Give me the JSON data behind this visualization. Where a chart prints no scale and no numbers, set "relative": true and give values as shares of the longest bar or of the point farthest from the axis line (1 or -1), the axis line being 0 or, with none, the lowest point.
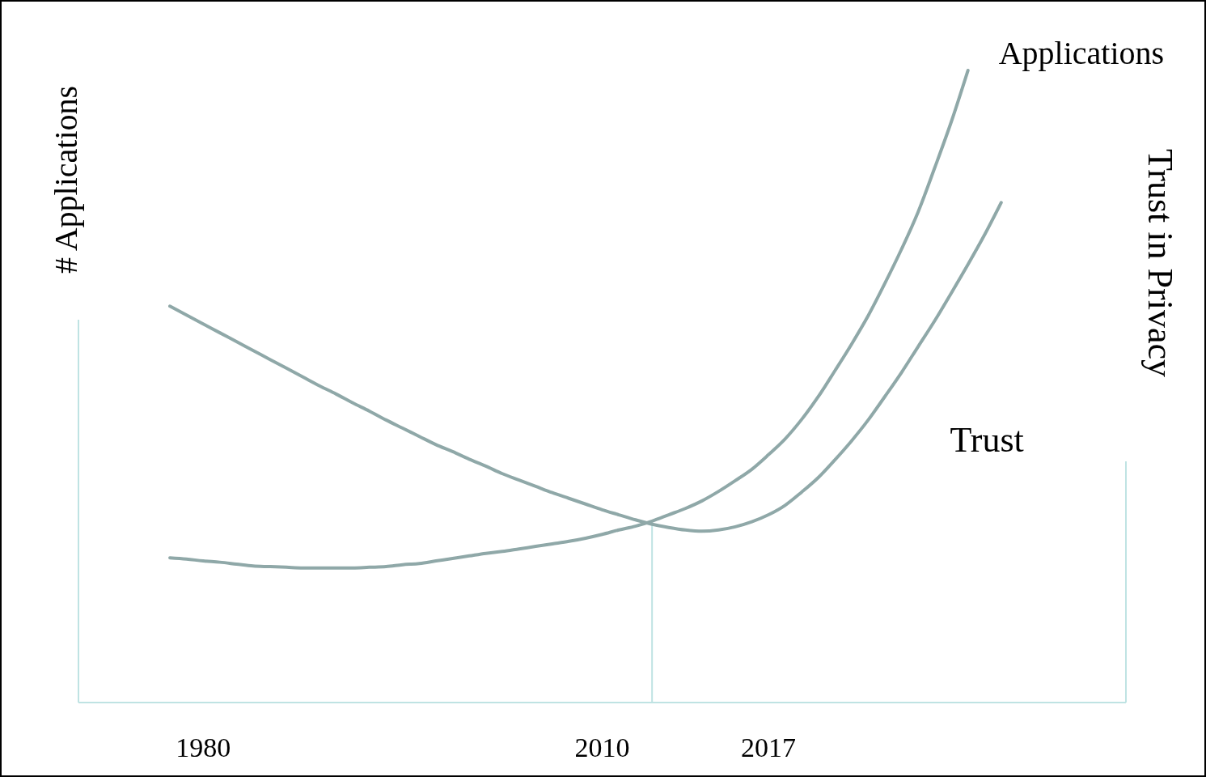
{
  "chart_data": {
    "type": "line",
    "relative": true,
    "ylabel": "# Applications",
    "y2label": "Trust in Privacy",
    "categories": [
      null,
      null,
      null,
      null,
      null,
      null,
      null,
      "1980",
      null,
      null,
      null,
      null,
      null,
      null,
      null,
      null,
      null,
      null,
      null,
      null,
      null,
      null,
      null,
      null,
      null,
      null,
      null,
      null,
      null,
      null,
      null,
      "2010",
      null,
      null,
      null,
      null,
      null,
      null,
      null,
      null,
      null,
      "2017",
      null,
      null,
      null,
      null,
      null,
      null,
      null,
      null,
      null,
      null,
      null,
      null,
      null,
      null,
      null,
      null,
      null,
      null,
      null,
      null,
      null
    ],
    "grid": false,
    "marker": "none",
    "line_style": "solid",
    "series": [
      {
        "name": "Applications",
        "color": "#8fa8a8",
        "values": [
          null,
          null,
          null,
          null,
          null,
          0.229,
          0.227,
          0.224,
          0.222,
          0.219,
          0.216,
          0.215,
          0.214,
          0.213,
          0.213,
          0.213,
          0.213,
          0.214,
          0.215,
          0.218,
          0.22,
          0.224,
          0.228,
          0.232,
          0.236,
          0.239,
          0.243,
          0.247,
          0.251,
          0.255,
          0.26,
          0.266,
          0.273,
          0.279,
          0.287,
          0.297,
          0.307,
          0.319,
          0.334,
          0.351,
          0.369,
          0.392,
          0.417,
          0.448,
          0.484,
          0.525,
          0.567,
          0.612,
          0.663,
          0.717,
          0.776,
          0.846,
          0.919,
          1,
          null,
          null,
          null,
          null,
          null,
          null,
          null,
          null,
          null
        ]
      },
      {
        "name": "Trust",
        "color": "#8fa8a8",
        "values": [
          null,
          null,
          null,
          null,
          null,
          0.627,
          0.613,
          0.599,
          0.585,
          0.571,
          0.557,
          0.543,
          0.529,
          0.515,
          0.501,
          0.488,
          0.474,
          0.461,
          0.447,
          0.434,
          0.421,
          0.408,
          0.397,
          0.385,
          0.374,
          0.362,
          0.352,
          0.342,
          0.332,
          0.323,
          0.314,
          0.305,
          0.297,
          0.289,
          0.282,
          0.277,
          0.273,
          0.271,
          0.273,
          0.278,
          0.286,
          0.297,
          0.312,
          0.333,
          0.356,
          0.384,
          0.414,
          0.447,
          0.484,
          0.522,
          0.563,
          0.604,
          0.648,
          0.693,
          0.74,
          0.791,
          null,
          null,
          null,
          null,
          null,
          null,
          null
        ]
      }
    ]
  }
}
